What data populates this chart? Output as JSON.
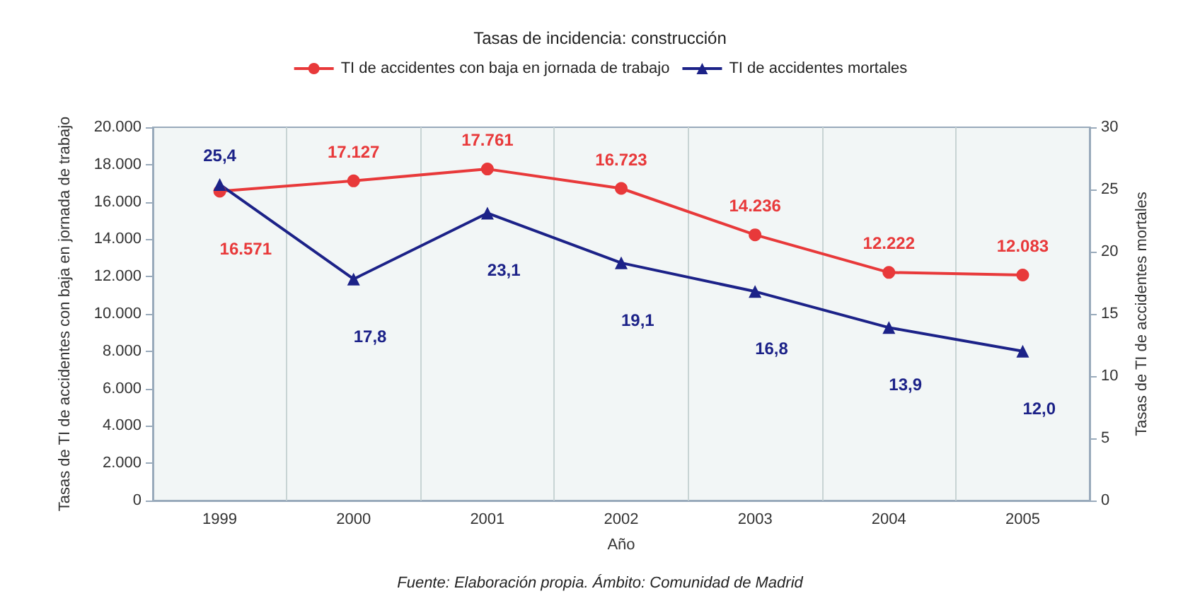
{
  "chart_data": {
    "type": "line",
    "title": "Tasas de incidencia: construcción",
    "xlabel": "Año",
    "ylabel": "Tasas de TI de accidentes con baja en jornada de trabajo",
    "y2label": "Tasas de TI de accidentes mortales",
    "categories": [
      "1999",
      "2000",
      "2001",
      "2002",
      "2003",
      "2004",
      "2005"
    ],
    "series": [
      {
        "name": "TI de accidentes con baja en jornada de trabajo",
        "color": "#e8393a",
        "marker": "circle",
        "values": [
          16571,
          17127,
          17761,
          16723,
          14236,
          12222,
          12083
        ],
        "value_labels": [
          "16.571",
          "17.127",
          "17.761",
          "16.723",
          "14.236",
          "12.222",
          "12.083"
        ]
      },
      {
        "name": "TI de accidentes mortales",
        "color": "#1c2288",
        "marker": "triangle",
        "axis": "y2",
        "values": [
          25.4,
          17.8,
          23.1,
          19.1,
          16.8,
          13.9,
          12.0
        ],
        "value_labels": [
          "25,4",
          "17,8",
          "23,1",
          "19,1",
          "16,8",
          "13,9",
          "12,0"
        ]
      }
    ],
    "ylim": [
      0,
      20000
    ],
    "yticks": [
      {
        "value": 0,
        "label": "0"
      },
      {
        "value": 2000,
        "label": "2.000"
      },
      {
        "value": 4000,
        "label": "4.000"
      },
      {
        "value": 6000,
        "label": "6.000"
      },
      {
        "value": 8000,
        "label": "8.000"
      },
      {
        "value": 10000,
        "label": "10.000"
      },
      {
        "value": 12000,
        "label": "12.000"
      },
      {
        "value": 14000,
        "label": "14.000"
      },
      {
        "value": 16000,
        "label": "16.000"
      },
      {
        "value": 18000,
        "label": "18.000"
      },
      {
        "value": 20000,
        "label": "20.000"
      }
    ],
    "y2lim": [
      0,
      30
    ],
    "y2ticks": [
      0,
      5,
      10,
      15,
      20,
      25,
      30
    ],
    "grid": "x",
    "legend": "top",
    "line_style": "solid",
    "annotations": [
      "Fuente: Elaboración propia. Ámbito: Comunidad de Madrid"
    ]
  }
}
